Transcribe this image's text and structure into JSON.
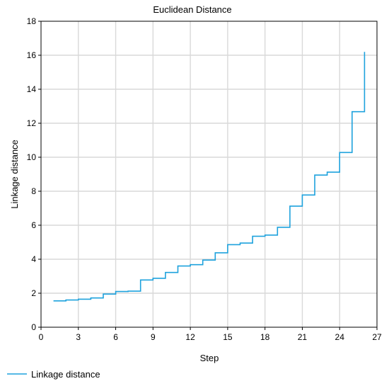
{
  "chart_data": {
    "type": "line",
    "title": "Euclidean Distance",
    "xlabel": "Step",
    "ylabel": "Linkage distance",
    "xlim": [
      0,
      27
    ],
    "ylim": [
      0,
      18
    ],
    "xticks": [
      0,
      3,
      6,
      9,
      12,
      15,
      18,
      21,
      24,
      27
    ],
    "yticks": [
      0,
      2,
      4,
      6,
      8,
      10,
      12,
      14,
      16,
      18
    ],
    "grid": true,
    "legend": {
      "position": "bottom-left",
      "entries": [
        "Linkage distance"
      ]
    },
    "series": [
      {
        "name": "Linkage distance",
        "color": "#1ea2dd",
        "step": true,
        "x": [
          1,
          2,
          3,
          4,
          5,
          6,
          7,
          8,
          9,
          10,
          11,
          12,
          13,
          14,
          15,
          16,
          17,
          18,
          19,
          20,
          21,
          22,
          23,
          24,
          25,
          26
        ],
        "y": [
          1.55,
          1.6,
          1.65,
          1.72,
          1.95,
          2.1,
          2.12,
          2.78,
          2.88,
          3.22,
          3.6,
          3.68,
          3.95,
          4.38,
          4.86,
          4.95,
          5.35,
          5.42,
          5.88,
          7.12,
          7.78,
          8.95,
          9.12,
          10.28,
          12.68,
          16.2
        ]
      }
    ]
  }
}
